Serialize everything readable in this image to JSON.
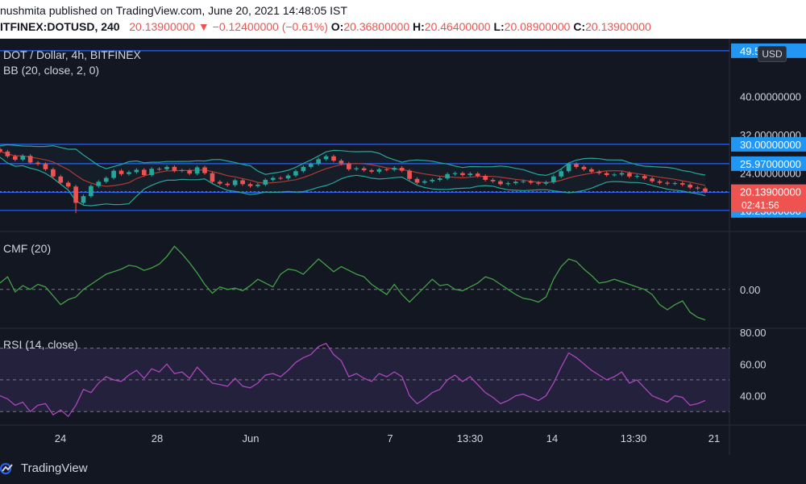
{
  "header": {
    "published": "nushmita published on TradingView.com, June 20, 2021 14:48:05 IST",
    "symbol": "ITFINEX:DOTUSD, 240",
    "last": "20.13900000",
    "change": "−0.12400000 (−0.61%)",
    "o_label": "O:",
    "o_value": "20.36800000",
    "h_label": "H:",
    "h_value": "20.46400000",
    "l_label": "L:",
    "l_value": "20.08900000",
    "c_label": "C:",
    "c_value": "20.13900000"
  },
  "colors": {
    "background": "#131722",
    "up": "#26a69a",
    "down": "#ef5350",
    "bb_band": "#26a69a",
    "bb_basis": "#b23a32",
    "hline": "#2962ff",
    "cmf": "#43a047",
    "rsi": "#ab47bc",
    "label_blue": "#2196f3"
  },
  "currency_chip": "USD",
  "footer": {
    "brand": "TradingView",
    "logo_icon": "tradingview-logo-icon"
  },
  "chart_data": {
    "type": "candlestick",
    "title": "DOT / Dollar, 4h, BITFINEX",
    "indicator_label": "BB (20, close, 2, 0)",
    "price_axis": {
      "ticks": [
        "40.00000000",
        "32.00000000",
        "24.00000000"
      ],
      "ylim": [
        12,
        52
      ]
    },
    "time_axis": {
      "labels": [
        "24",
        "28",
        "Jun",
        "7",
        "13:30",
        "14",
        "13:30",
        "21"
      ]
    },
    "levels": [
      {
        "value": 49.5,
        "label": "49.50"
      },
      {
        "value": 30.0,
        "label": "30.00000000"
      },
      {
        "value": 25.97,
        "label": "25.97000000"
      },
      {
        "value": 20.0,
        "label": "20.00000000"
      },
      {
        "value": 16.23,
        "label": "16.23000000"
      }
    ],
    "last_price": {
      "value": 20.139,
      "label": "20.13900000",
      "countdown": "02:41:56"
    },
    "price_series": [
      28.5,
      27.5,
      26.8,
      27.6,
      26.2,
      25.9,
      24.8,
      23.3,
      22.0,
      21.2,
      17.8,
      19.2,
      21.3,
      22.2,
      23.0,
      24.5,
      23.8,
      24.2,
      24.7,
      23.6,
      24.9,
      24.8,
      25.3,
      24.5,
      24.6,
      23.9,
      25.2,
      24.0,
      22.2,
      21.8,
      21.5,
      22.5,
      21.7,
      21.3,
      21.6,
      22.6,
      23.0,
      22.9,
      23.5,
      24.4,
      25.3,
      25.9,
      26.9,
      27.5,
      26.6,
      26.0,
      24.8,
      25.0,
      24.6,
      24.3,
      24.8,
      24.7,
      25.1,
      24.5,
      22.8,
      22.0,
      22.3,
      22.6,
      22.9,
      23.8,
      24.0,
      23.6,
      23.9,
      23.4,
      22.6,
      22.3,
      21.7,
      21.9,
      22.2,
      22.3,
      22.0,
      21.8,
      22.1,
      23.3,
      24.4,
      25.9,
      25.3,
      24.8,
      24.3,
      24.0,
      23.6,
      23.7,
      24.0,
      23.3,
      23.4,
      22.9,
      22.3,
      22.0,
      21.8,
      21.9,
      21.6,
      21.0,
      20.8,
      20.14
    ],
    "cmf": {
      "label": "CMF (20)",
      "ticks": [
        "0.00"
      ],
      "ylim": [
        -0.3,
        0.45
      ],
      "values": [
        0.05,
        0.1,
        -0.02,
        0.03,
        0.0,
        0.04,
        0.02,
        -0.05,
        -0.12,
        -0.08,
        -0.06,
        0.0,
        0.04,
        0.08,
        0.12,
        0.14,
        0.16,
        0.19,
        0.18,
        0.15,
        0.17,
        0.2,
        0.26,
        0.34,
        0.28,
        0.21,
        0.13,
        0.04,
        -0.03,
        0.02,
        0.0,
        0.01,
        -0.01,
        0.03,
        0.08,
        0.05,
        0.02,
        0.12,
        0.16,
        0.15,
        0.12,
        0.18,
        0.24,
        0.19,
        0.14,
        0.18,
        0.15,
        0.12,
        0.1,
        0.04,
        0.0,
        -0.04,
        0.04,
        -0.04,
        -0.1,
        -0.04,
        0.02,
        0.08,
        0.03,
        0.04,
        0.0,
        -0.01,
        0.02,
        0.05,
        0.1,
        0.08,
        0.04,
        0.0,
        -0.04,
        -0.07,
        -0.08,
        -0.1,
        -0.06,
        0.08,
        0.18,
        0.24,
        0.22,
        0.16,
        0.11,
        0.05,
        0.06,
        0.08,
        0.06,
        0.04,
        0.02,
        0.0,
        -0.04,
        -0.12,
        -0.16,
        -0.12,
        -0.09,
        -0.18,
        -0.22,
        -0.24
      ]
    },
    "rsi": {
      "label": "RSI (14, close)",
      "ticks": [
        "80.00",
        "60.00",
        "40.00"
      ],
      "ylim": [
        22,
        82
      ],
      "values": [
        40,
        38,
        34,
        36,
        30,
        34,
        35,
        28,
        31,
        27,
        34,
        44,
        42,
        48,
        52,
        50,
        49,
        53,
        56,
        51,
        57,
        55,
        60,
        54,
        55,
        51,
        58,
        53,
        48,
        47,
        46,
        51,
        46,
        45,
        48,
        53,
        54,
        52,
        56,
        61,
        64,
        66,
        71,
        73,
        66,
        62,
        52,
        54,
        51,
        49,
        54,
        52,
        55,
        52,
        40,
        35,
        38,
        42,
        44,
        50,
        53,
        49,
        52,
        47,
        42,
        39,
        35,
        37,
        40,
        41,
        39,
        37,
        40,
        48,
        58,
        67,
        64,
        60,
        56,
        53,
        50,
        52,
        55,
        48,
        50,
        45,
        40,
        38,
        36,
        40,
        39,
        34,
        35,
        37
      ]
    }
  }
}
